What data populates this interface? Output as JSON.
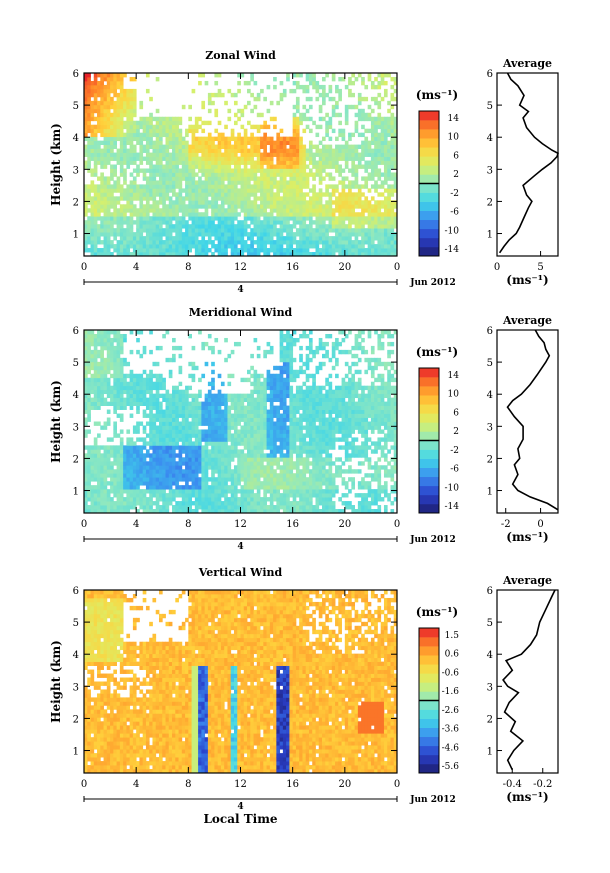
{
  "figure": {
    "x_axis_label": "Local Time",
    "date_label": "Jun 2012",
    "day_label": "4",
    "height_label": "Height (km)",
    "avg_title": "Average",
    "unit_label": "(ms⁻¹)"
  },
  "chart_data": [
    {
      "type": "heatmap",
      "title": "Zonal Wind",
      "xlabel": "",
      "ylabel": "Height (km)",
      "x_ticks": [
        "0",
        "4",
        "8",
        "12",
        "16",
        "20",
        "0"
      ],
      "xlim": [
        0,
        24
      ],
      "ylim": [
        0.3,
        6.0
      ],
      "y_ticks": [
        "1",
        "2",
        "3",
        "4",
        "5",
        "6"
      ],
      "colorbar": {
        "label": "(ms⁻¹)",
        "ticks": [
          "14",
          "10",
          "6",
          "2",
          "-2",
          "-6",
          "-10",
          "-14"
        ],
        "range": [
          -16,
          16
        ]
      },
      "field_description": "strong positive (up to ~15 m/s) at 0-3 h above 4.5 km and near 14-16 h at 3.5-4.5 km; weak/negative below 1.5 km",
      "profile": {
        "title": "Average",
        "x_ticks": [
          "0",
          "5"
        ],
        "xlim": [
          0,
          7
        ],
        "xlabel": "(ms⁻¹)",
        "y_ticks": [
          "1",
          "2",
          "3",
          "4",
          "5",
          "6"
        ],
        "heights": [
          0.4,
          0.6,
          0.8,
          1.0,
          1.2,
          1.5,
          1.8,
          2.0,
          2.2,
          2.5,
          2.8,
          3.0,
          3.2,
          3.4,
          3.5,
          3.6,
          3.8,
          4.0,
          4.3,
          4.6,
          4.8,
          5.0,
          5.3,
          5.6,
          5.8,
          6.0
        ],
        "values": [
          0.3,
          0.8,
          1.4,
          2.2,
          2.6,
          3.1,
          3.6,
          4.0,
          3.4,
          3.0,
          4.3,
          5.2,
          6.2,
          6.9,
          7.0,
          6.3,
          5.2,
          4.3,
          3.4,
          3.0,
          3.6,
          2.6,
          3.1,
          2.4,
          1.6,
          1.2
        ]
      }
    },
    {
      "type": "heatmap",
      "title": "Meridional Wind",
      "xlabel": "",
      "ylabel": "Height (km)",
      "x_ticks": [
        "0",
        "4",
        "8",
        "12",
        "16",
        "20",
        "0"
      ],
      "xlim": [
        0,
        24
      ],
      "ylim": [
        0.3,
        6.0
      ],
      "y_ticks": [
        "1",
        "2",
        "3",
        "4",
        "5",
        "6"
      ],
      "colorbar": {
        "label": "(ms⁻¹)",
        "ticks": [
          "14",
          "10",
          "6",
          "2",
          "-2",
          "-6",
          "-10",
          "-14"
        ],
        "range": [
          -16,
          16
        ]
      },
      "field_description": "mostly weak negative (cyan/blue) with a blue patch near 4-8 h at 1.5-2 km and blue plumes near 10 h and 15 h",
      "profile": {
        "title": "Average",
        "x_ticks": [
          "-2",
          "0"
        ],
        "xlim": [
          -2.5,
          1.0
        ],
        "xlabel": "(ms⁻¹)",
        "y_ticks": [
          "1",
          "2",
          "3",
          "4",
          "5",
          "6"
        ],
        "heights": [
          0.4,
          0.6,
          0.8,
          1.0,
          1.2,
          1.5,
          1.8,
          2.0,
          2.3,
          2.6,
          3.0,
          3.3,
          3.6,
          3.8,
          4.0,
          4.3,
          4.6,
          5.0,
          5.2,
          5.4,
          5.6,
          5.8,
          6.0
        ],
        "values": [
          1.0,
          0.4,
          -0.6,
          -1.3,
          -1.6,
          -1.3,
          -1.5,
          -1.2,
          -1.3,
          -1.0,
          -1.0,
          -1.5,
          -1.9,
          -1.6,
          -1.1,
          -0.6,
          -0.2,
          0.3,
          0.5,
          0.3,
          0.2,
          -0.1,
          -0.3
        ]
      }
    },
    {
      "type": "heatmap",
      "title": "Vertical Wind",
      "xlabel": "Local Time",
      "ylabel": "Height (km)",
      "x_ticks": [
        "0",
        "4",
        "8",
        "12",
        "16",
        "20",
        "0"
      ],
      "xlim": [
        0,
        24
      ],
      "ylim": [
        0.3,
        6.0
      ],
      "y_ticks": [
        "1",
        "2",
        "3",
        "4",
        "5",
        "6"
      ],
      "colorbar": {
        "label": "(ms⁻¹)",
        "ticks": [
          "1.5",
          "0.6",
          "-0.6",
          "-1.6",
          "-2.6",
          "-3.6",
          "-4.6",
          "-5.6"
        ],
        "range": [
          -6.0,
          2.0
        ]
      },
      "field_description": "near zero (orange) almost everywhere; narrow strong downdrafts (blue) near 9.2 h, 11.5 h and 14.8-15.5 h below 3.5 km",
      "profile": {
        "title": "Average",
        "x_ticks": [
          "-0.4",
          "-0.2"
        ],
        "xlim": [
          -0.5,
          -0.1
        ],
        "xlabel": "(ms⁻¹)",
        "y_ticks": [
          "1",
          "2",
          "3",
          "4",
          "5",
          "6"
        ],
        "heights": [
          0.4,
          0.7,
          1.0,
          1.3,
          1.6,
          1.9,
          2.2,
          2.5,
          2.8,
          3.0,
          3.2,
          3.5,
          3.8,
          4.0,
          4.3,
          4.6,
          5.0,
          5.4,
          5.8,
          6.0
        ],
        "values": [
          -0.4,
          -0.43,
          -0.39,
          -0.33,
          -0.41,
          -0.38,
          -0.45,
          -0.42,
          -0.36,
          -0.43,
          -0.46,
          -0.4,
          -0.44,
          -0.34,
          -0.28,
          -0.24,
          -0.22,
          -0.18,
          -0.14,
          -0.12
        ]
      }
    }
  ]
}
